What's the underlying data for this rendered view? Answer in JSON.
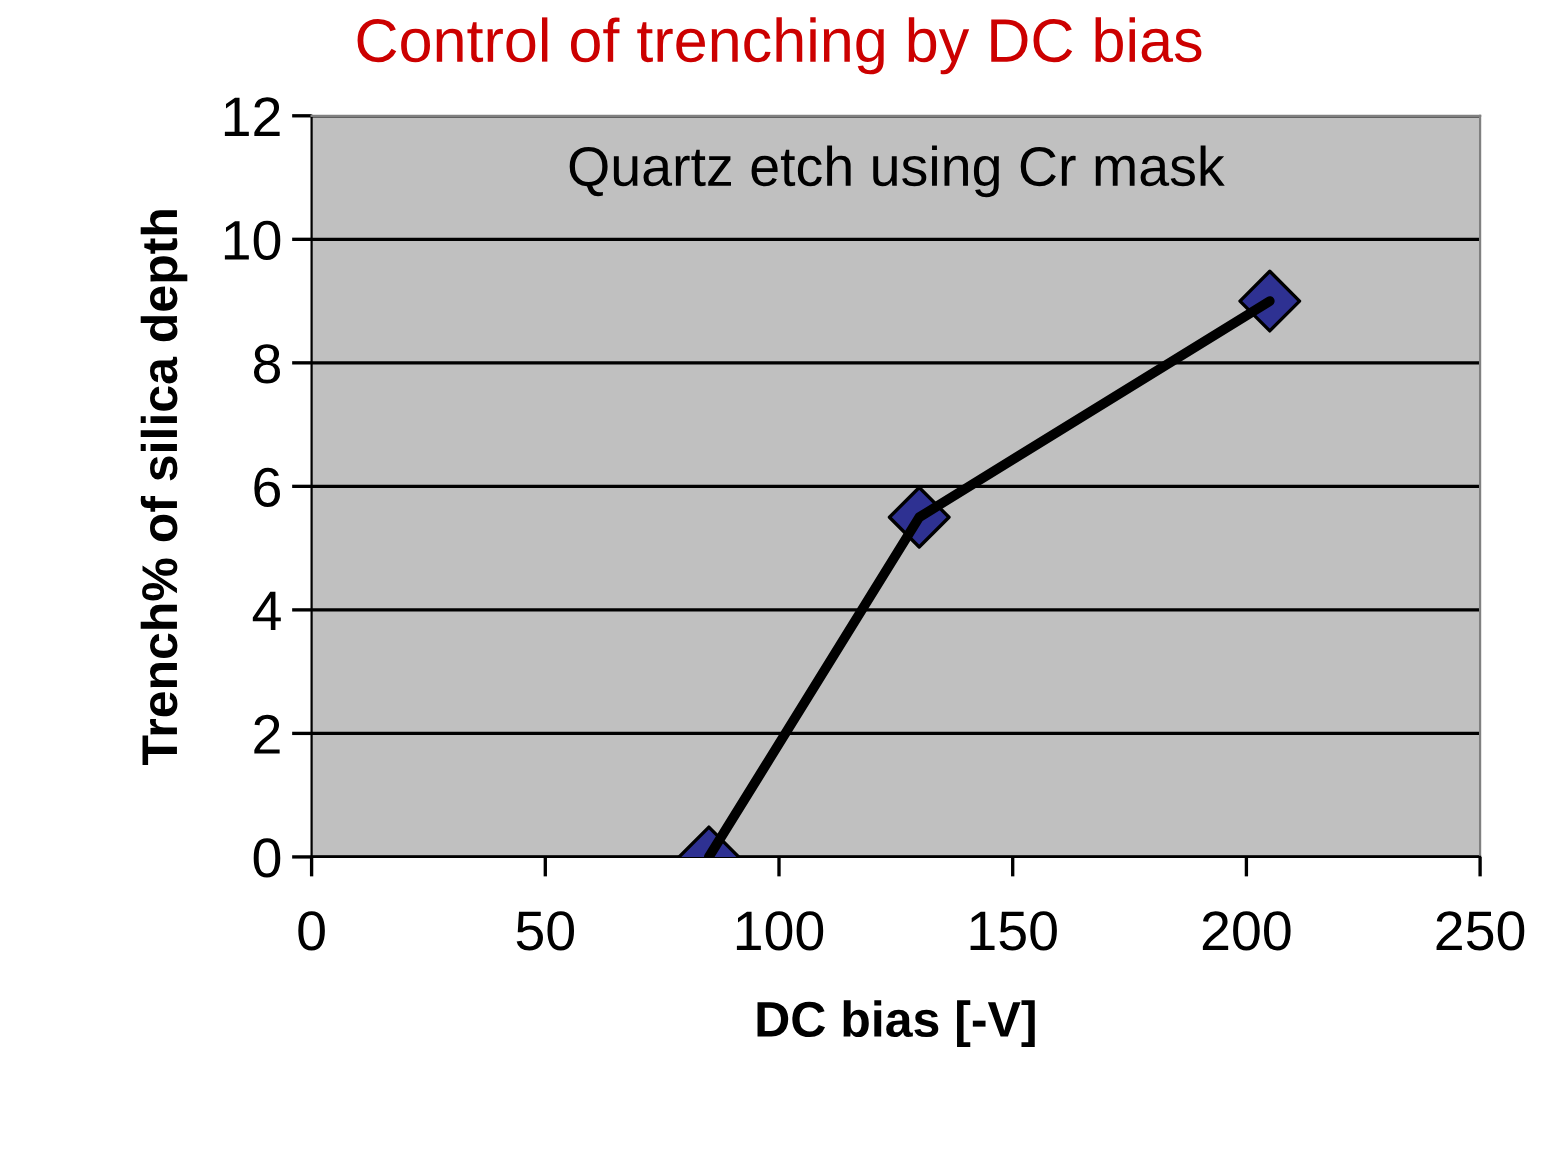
{
  "chart_data": {
    "type": "line",
    "title": "Control of trenching by DC bias",
    "xlabel": "DC bias [-V]",
    "ylabel": "Trench% of silica depth",
    "annotations": [
      "Quartz etch using Cr mask"
    ],
    "x": [
      85,
      130,
      205
    ],
    "series": [
      {
        "color": "#000000",
        "colors": [
          "#2e3192",
          "#2e3192",
          "#2e3192"
        ],
        "values": [
          0,
          5.5,
          9
        ]
      }
    ],
    "marker": "diamond",
    "xlim": [
      0,
      250
    ],
    "xticks": [
      0,
      50,
      100,
      150,
      200,
      250
    ],
    "ylim": [
      0,
      12
    ],
    "yticks": [
      0,
      2,
      4,
      6,
      8,
      10,
      12
    ],
    "grid": "y",
    "legend": false
  }
}
